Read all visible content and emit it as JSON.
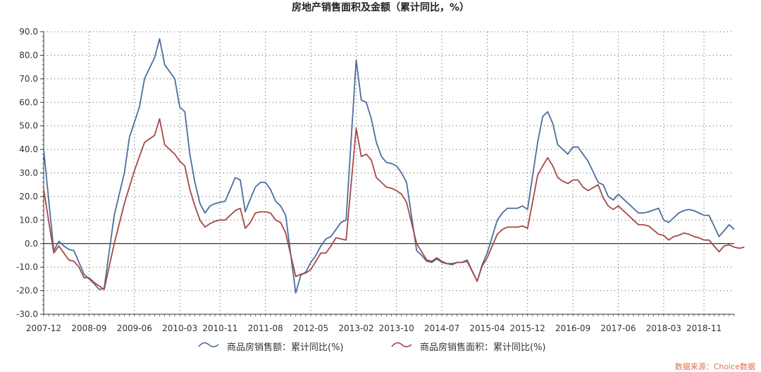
{
  "chart_data": {
    "type": "line",
    "title": "房地产销售面积及金额（累计同比，%）",
    "source_note": "数据来源：Choice数据",
    "ylim": [
      -30,
      90
    ],
    "y_ticks": [
      "90.0",
      "80.0",
      "70.0",
      "60.0",
      "50.0",
      "40.0",
      "30.0",
      "20.0",
      "10.0",
      "0.0",
      "-10.0",
      "-20.0",
      "-30.0"
    ],
    "x_ticks": [
      "2007-12",
      "2008-09",
      "2009-06",
      "2010-03",
      "2010-11",
      "2011-08",
      "2012-05",
      "2013-02",
      "2013-10",
      "2014-07",
      "2015-04",
      "2015-12",
      "2016-09",
      "2017-06",
      "2018-03",
      "2018-11"
    ],
    "x_start": "2007-12",
    "x_end": "2019-05",
    "grid": true,
    "legend_position": "bottom",
    "series": [
      {
        "name": "商品房销售额：累计同比(%)",
        "color": "#4a6f9c",
        "points": [
          [
            "2007-12",
            40.0
          ],
          [
            "2008-02",
            -3.0
          ],
          [
            "2008-03",
            1.0
          ],
          [
            "2008-04",
            -1.0
          ],
          [
            "2008-05",
            -2.5
          ],
          [
            "2008-06",
            -3.0
          ],
          [
            "2008-07",
            -8.0
          ],
          [
            "2008-08",
            -13.0
          ],
          [
            "2008-10",
            -17.0
          ],
          [
            "2008-11",
            -19.5
          ],
          [
            "2008-12",
            -19.0
          ],
          [
            "2009-02",
            12.0
          ],
          [
            "2009-04",
            30.0
          ],
          [
            "2009-05",
            45.0
          ],
          [
            "2009-07",
            58.0
          ],
          [
            "2009-08",
            70.0
          ],
          [
            "2009-10",
            79.0
          ],
          [
            "2009-11",
            87.0
          ],
          [
            "2009-12",
            76.0
          ],
          [
            "2010-02",
            70.0
          ],
          [
            "2010-03",
            58.0
          ],
          [
            "2010-04",
            56.0
          ],
          [
            "2010-05",
            38.0
          ],
          [
            "2010-06",
            26.0
          ],
          [
            "2010-07",
            17.0
          ],
          [
            "2010-08",
            13.0
          ],
          [
            "2010-09",
            16.0
          ],
          [
            "2010-10",
            17.0
          ],
          [
            "2010-11",
            17.5
          ],
          [
            "2010-12",
            18.0
          ],
          [
            "2011-02",
            28.0
          ],
          [
            "2011-03",
            27.0
          ],
          [
            "2011-04",
            13.5
          ],
          [
            "2011-05",
            19.0
          ],
          [
            "2011-06",
            24.0
          ],
          [
            "2011-07",
            26.0
          ],
          [
            "2011-08",
            26.0
          ],
          [
            "2011-09",
            23.0
          ],
          [
            "2011-10",
            18.0
          ],
          [
            "2011-11",
            16.0
          ],
          [
            "2011-12",
            12.0
          ],
          [
            "2012-02",
            -21.0
          ],
          [
            "2012-03",
            -13.5
          ],
          [
            "2012-04",
            -12.0
          ],
          [
            "2012-05",
            -8.0
          ],
          [
            "2012-06",
            -5.0
          ],
          [
            "2012-07",
            -1.0
          ],
          [
            "2012-08",
            2.0
          ],
          [
            "2012-09",
            3.0
          ],
          [
            "2012-10",
            6.0
          ],
          [
            "2012-11",
            9.0
          ],
          [
            "2012-12",
            10.0
          ],
          [
            "2013-02",
            78.0
          ],
          [
            "2013-03",
            61.0
          ],
          [
            "2013-04",
            60.0
          ],
          [
            "2013-05",
            53.0
          ],
          [
            "2013-06",
            43.0
          ],
          [
            "2013-07",
            37.0
          ],
          [
            "2013-08",
            34.5
          ],
          [
            "2013-09",
            34.0
          ],
          [
            "2013-10",
            33.0
          ],
          [
            "2013-11",
            30.0
          ],
          [
            "2013-12",
            26.0
          ],
          [
            "2014-02",
            -3.0
          ],
          [
            "2014-03",
            -5.0
          ],
          [
            "2014-04",
            -7.5
          ],
          [
            "2014-05",
            -8.0
          ],
          [
            "2014-06",
            -6.5
          ],
          [
            "2014-07",
            -8.0
          ],
          [
            "2014-08",
            -8.5
          ],
          [
            "2014-09",
            -9.0
          ],
          [
            "2014-10",
            -8.0
          ],
          [
            "2014-11",
            -8.0
          ],
          [
            "2014-12",
            -7.0
          ],
          [
            "2015-02",
            -16.0
          ],
          [
            "2015-03",
            -9.0
          ],
          [
            "2015-04",
            -4.0
          ],
          [
            "2015-05",
            3.0
          ],
          [
            "2015-06",
            10.0
          ],
          [
            "2015-07",
            13.0
          ],
          [
            "2015-08",
            15.0
          ],
          [
            "2015-09",
            15.0
          ],
          [
            "2015-10",
            15.0
          ],
          [
            "2015-11",
            16.0
          ],
          [
            "2015-12",
            14.5
          ],
          [
            "2016-02",
            43.0
          ],
          [
            "2016-03",
            54.0
          ],
          [
            "2016-04",
            56.0
          ],
          [
            "2016-05",
            51.0
          ],
          [
            "2016-06",
            42.0
          ],
          [
            "2016-07",
            40.0
          ],
          [
            "2016-08",
            38.0
          ],
          [
            "2016-09",
            41.0
          ],
          [
            "2016-10",
            41.0
          ],
          [
            "2016-11",
            38.0
          ],
          [
            "2016-12",
            35.0
          ],
          [
            "2017-02",
            26.0
          ],
          [
            "2017-03",
            25.0
          ],
          [
            "2017-04",
            20.0
          ],
          [
            "2017-05",
            18.5
          ],
          [
            "2017-06",
            21.0
          ],
          [
            "2017-07",
            19.0
          ],
          [
            "2017-08",
            17.0
          ],
          [
            "2017-09",
            15.0
          ],
          [
            "2017-10",
            13.0
          ],
          [
            "2017-11",
            13.0
          ],
          [
            "2017-12",
            13.5
          ],
          [
            "2018-02",
            15.0
          ],
          [
            "2018-03",
            10.0
          ],
          [
            "2018-04",
            9.0
          ],
          [
            "2018-05",
            11.0
          ],
          [
            "2018-06",
            13.0
          ],
          [
            "2018-07",
            14.0
          ],
          [
            "2018-08",
            14.5
          ],
          [
            "2018-09",
            14.0
          ],
          [
            "2018-10",
            13.0
          ],
          [
            "2018-11",
            12.0
          ],
          [
            "2018-12",
            12.0
          ],
          [
            "2019-02",
            3.0
          ],
          [
            "2019-03",
            5.5
          ],
          [
            "2019-04",
            8.0
          ],
          [
            "2019-05",
            6.0
          ]
        ]
      },
      {
        "name": "商品房销售面积：累计同比(%)",
        "color": "#a84747",
        "points": [
          [
            "2007-12",
            23.0
          ],
          [
            "2008-02",
            -4.0
          ],
          [
            "2008-03",
            -1.0
          ],
          [
            "2008-04",
            -4.0
          ],
          [
            "2008-05",
            -7.0
          ],
          [
            "2008-06",
            -7.5
          ],
          [
            "2008-07",
            -10.0
          ],
          [
            "2008-08",
            -14.5
          ],
          [
            "2008-09",
            -14.5
          ],
          [
            "2008-10",
            -16.5
          ],
          [
            "2008-11",
            -18.0
          ],
          [
            "2008-12",
            -19.5
          ],
          [
            "2009-02",
            0.0
          ],
          [
            "2009-04",
            17.0
          ],
          [
            "2009-05",
            24.0
          ],
          [
            "2009-06",
            31.0
          ],
          [
            "2009-07",
            37.0
          ],
          [
            "2009-08",
            43.0
          ],
          [
            "2009-10",
            46.0
          ],
          [
            "2009-11",
            53.0
          ],
          [
            "2009-12",
            42.0
          ],
          [
            "2010-02",
            38.0
          ],
          [
            "2010-03",
            35.0
          ],
          [
            "2010-04",
            33.0
          ],
          [
            "2010-05",
            23.0
          ],
          [
            "2010-06",
            16.0
          ],
          [
            "2010-07",
            10.0
          ],
          [
            "2010-08",
            7.0
          ],
          [
            "2010-09",
            8.5
          ],
          [
            "2010-10",
            9.5
          ],
          [
            "2010-11",
            10.0
          ],
          [
            "2010-12",
            10.0
          ],
          [
            "2011-02",
            14.0
          ],
          [
            "2011-03",
            15.0
          ],
          [
            "2011-04",
            6.5
          ],
          [
            "2011-05",
            9.0
          ],
          [
            "2011-06",
            13.0
          ],
          [
            "2011-07",
            13.5
          ],
          [
            "2011-08",
            13.5
          ],
          [
            "2011-09",
            13.0
          ],
          [
            "2011-10",
            10.0
          ],
          [
            "2011-11",
            9.0
          ],
          [
            "2011-12",
            4.5
          ],
          [
            "2012-02",
            -14.0
          ],
          [
            "2012-03",
            -13.0
          ],
          [
            "2012-04",
            -12.5
          ],
          [
            "2012-05",
            -11.0
          ],
          [
            "2012-06",
            -7.5
          ],
          [
            "2012-07",
            -4.0
          ],
          [
            "2012-08",
            -4.0
          ],
          [
            "2012-09",
            -1.0
          ],
          [
            "2012-10",
            2.5
          ],
          [
            "2012-11",
            2.0
          ],
          [
            "2012-12",
            1.5
          ],
          [
            "2013-02",
            49.0
          ],
          [
            "2013-03",
            37.0
          ],
          [
            "2013-04",
            38.0
          ],
          [
            "2013-05",
            35.5
          ],
          [
            "2013-06",
            28.0
          ],
          [
            "2013-07",
            26.0
          ],
          [
            "2013-08",
            24.0
          ],
          [
            "2013-09",
            23.5
          ],
          [
            "2013-10",
            22.5
          ],
          [
            "2013-11",
            21.0
          ],
          [
            "2013-12",
            17.5
          ],
          [
            "2014-02",
            0.0
          ],
          [
            "2014-03",
            -3.5
          ],
          [
            "2014-04",
            -7.0
          ],
          [
            "2014-05",
            -7.5
          ],
          [
            "2014-06",
            -6.0
          ],
          [
            "2014-07",
            -7.5
          ],
          [
            "2014-08",
            -8.5
          ],
          [
            "2014-09",
            -8.5
          ],
          [
            "2014-10",
            -8.0
          ],
          [
            "2014-11",
            -8.0
          ],
          [
            "2014-12",
            -7.5
          ],
          [
            "2015-02",
            -16.0
          ],
          [
            "2015-03",
            -9.5
          ],
          [
            "2015-04",
            -6.0
          ],
          [
            "2015-05",
            -1.0
          ],
          [
            "2015-06",
            4.0
          ],
          [
            "2015-07",
            6.0
          ],
          [
            "2015-08",
            7.0
          ],
          [
            "2015-09",
            7.0
          ],
          [
            "2015-10",
            7.0
          ],
          [
            "2015-11",
            7.5
          ],
          [
            "2015-12",
            6.5
          ],
          [
            "2016-02",
            29.0
          ],
          [
            "2016-03",
            33.0
          ],
          [
            "2016-04",
            36.5
          ],
          [
            "2016-05",
            33.0
          ],
          [
            "2016-06",
            28.0
          ],
          [
            "2016-07",
            26.5
          ],
          [
            "2016-08",
            25.5
          ],
          [
            "2016-09",
            27.0
          ],
          [
            "2016-10",
            27.0
          ],
          [
            "2016-11",
            24.0
          ],
          [
            "2016-12",
            22.5
          ],
          [
            "2017-02",
            25.0
          ],
          [
            "2017-03",
            19.5
          ],
          [
            "2017-04",
            16.0
          ],
          [
            "2017-05",
            14.5
          ],
          [
            "2017-06",
            16.0
          ],
          [
            "2017-07",
            14.0
          ],
          [
            "2017-08",
            12.0
          ],
          [
            "2017-09",
            10.0
          ],
          [
            "2017-10",
            8.0
          ],
          [
            "2017-11",
            8.0
          ],
          [
            "2017-12",
            7.5
          ],
          [
            "2018-02",
            4.0
          ],
          [
            "2018-03",
            3.5
          ],
          [
            "2018-04",
            1.5
          ],
          [
            "2018-05",
            3.0
          ],
          [
            "2018-06",
            3.5
          ],
          [
            "2018-07",
            4.5
          ],
          [
            "2018-08",
            4.0
          ],
          [
            "2018-09",
            3.0
          ],
          [
            "2018-10",
            2.5
          ],
          [
            "2018-11",
            1.5
          ],
          [
            "2018-12",
            1.5
          ],
          [
            "2019-02",
            -3.5
          ],
          [
            "2019-03",
            -1.0
          ],
          [
            "2019-04",
            -0.5
          ],
          [
            "2019-05",
            -1.5
          ],
          [
            "2019-06",
            -2.0
          ],
          [
            "2019-07",
            -1.5
          ]
        ]
      }
    ]
  }
}
